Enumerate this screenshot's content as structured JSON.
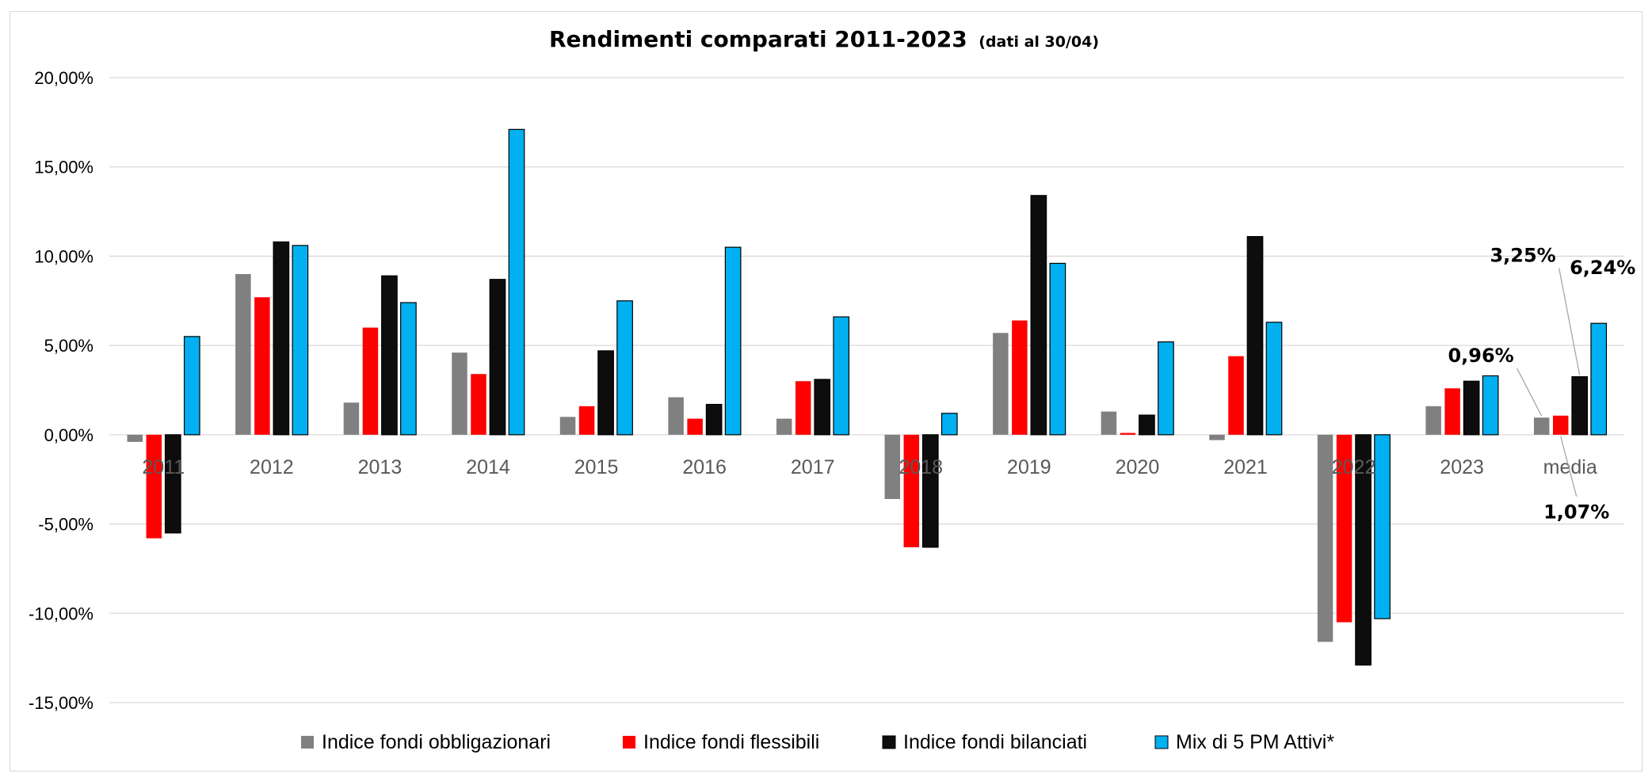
{
  "chart_data": {
    "type": "bar",
    "title": "Rendimenti comparati 2011-2023",
    "subtitle": "(dati al 30/04)",
    "xlabel": "",
    "ylabel": "",
    "ylim": [
      -15,
      20
    ],
    "yticks": [
      20,
      15,
      10,
      5,
      0,
      -5,
      -10,
      -15
    ],
    "ytick_labels": [
      "20,00%",
      "15,00%",
      "10,00%",
      "5,00%",
      "0,00%",
      "-5,00%",
      "-10,00%",
      "-15,00%"
    ],
    "grid": true,
    "legend_position": "bottom",
    "categories": [
      "2011",
      "2012",
      "2013",
      "2014",
      "2015",
      "2016",
      "2017",
      "2018",
      "2019",
      "2020",
      "2021",
      "2022",
      "2023",
      "media"
    ],
    "series": [
      {
        "name": "Indice fondi obbligazionari",
        "color": "#808080",
        "values": [
          -0.4,
          9.0,
          1.8,
          4.6,
          1.0,
          2.1,
          0.9,
          -3.6,
          5.7,
          1.3,
          -0.3,
          -11.6,
          1.6,
          0.96
        ]
      },
      {
        "name": "Indice fondi flessibili",
        "color": "#ff0000",
        "values": [
          -5.8,
          7.7,
          6.0,
          3.4,
          1.6,
          0.9,
          3.0,
          -6.3,
          6.4,
          0.1,
          4.4,
          -10.5,
          2.6,
          1.07
        ]
      },
      {
        "name": "Indice fondi bilanciati",
        "color": "#0d0d0d",
        "values": [
          -5.5,
          10.8,
          8.9,
          8.7,
          4.7,
          1.7,
          3.1,
          -6.3,
          13.4,
          1.1,
          11.1,
          -12.9,
          3.0,
          3.25
        ]
      },
      {
        "name": "Mix di 5 PM Attivi*",
        "color": "#00b0f0",
        "values": [
          5.5,
          10.6,
          7.4,
          17.1,
          7.5,
          10.5,
          6.6,
          1.2,
          9.6,
          5.2,
          6.3,
          -10.3,
          3.3,
          6.24
        ]
      }
    ],
    "annotations": [
      {
        "category": "media",
        "series": "Indice fondi obbligazionari",
        "text": "0,96%"
      },
      {
        "category": "media",
        "series": "Indice fondi flessibili",
        "text": "1,07%"
      },
      {
        "category": "media",
        "series": "Indice fondi bilanciati",
        "text": "3,25%"
      },
      {
        "category": "media",
        "series": "Mix di 5 PM Attivi*",
        "text": "6,24%"
      }
    ]
  }
}
